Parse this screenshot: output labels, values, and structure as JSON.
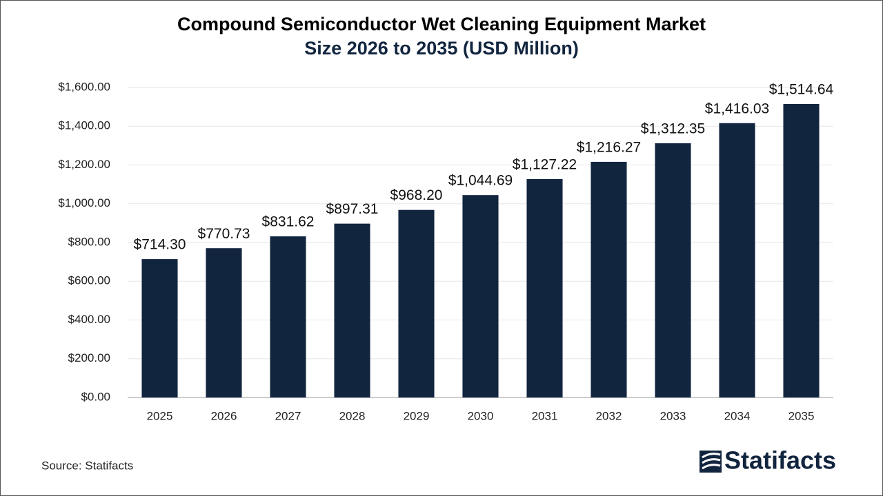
{
  "chart_data": {
    "type": "bar",
    "title": "Compound Semiconductor Wet Cleaning Equipment Market",
    "subtitle": "Size 2026 to 2035 (USD Million)",
    "categories": [
      "2025",
      "2026",
      "2027",
      "2028",
      "2029",
      "2030",
      "2031",
      "2032",
      "2033",
      "2034",
      "2035"
    ],
    "values": [
      714.3,
      770.73,
      831.62,
      897.31,
      968.2,
      1044.69,
      1127.22,
      1216.27,
      1312.35,
      1416.03,
      1514.64
    ],
    "value_labels": [
      "$714.30",
      "$770.73",
      "$831.62",
      "$897.31",
      "$968.20",
      "$1,044.69",
      "$1,127.22",
      "$1,216.27",
      "$1,312.35",
      "$1,416.03",
      "$1,514.64"
    ],
    "color": "#12253f",
    "ylim": [
      0,
      1600
    ],
    "yticks": [
      {
        "value": 0,
        "label": "$0.00"
      },
      {
        "value": 200,
        "label": "$200.00"
      },
      {
        "value": 400,
        "label": "$400.00"
      },
      {
        "value": 600,
        "label": "$600.00"
      },
      {
        "value": 800,
        "label": "$800.00"
      },
      {
        "value": 1000,
        "label": "$1,000.00"
      },
      {
        "value": 1200,
        "label": "$1,200.00"
      },
      {
        "value": 1400,
        "label": "$1,400.00"
      },
      {
        "value": 1600,
        "label": "$1,600.00"
      }
    ],
    "grid": true,
    "source": "Source: Statifacts",
    "brand": "Statifacts"
  }
}
